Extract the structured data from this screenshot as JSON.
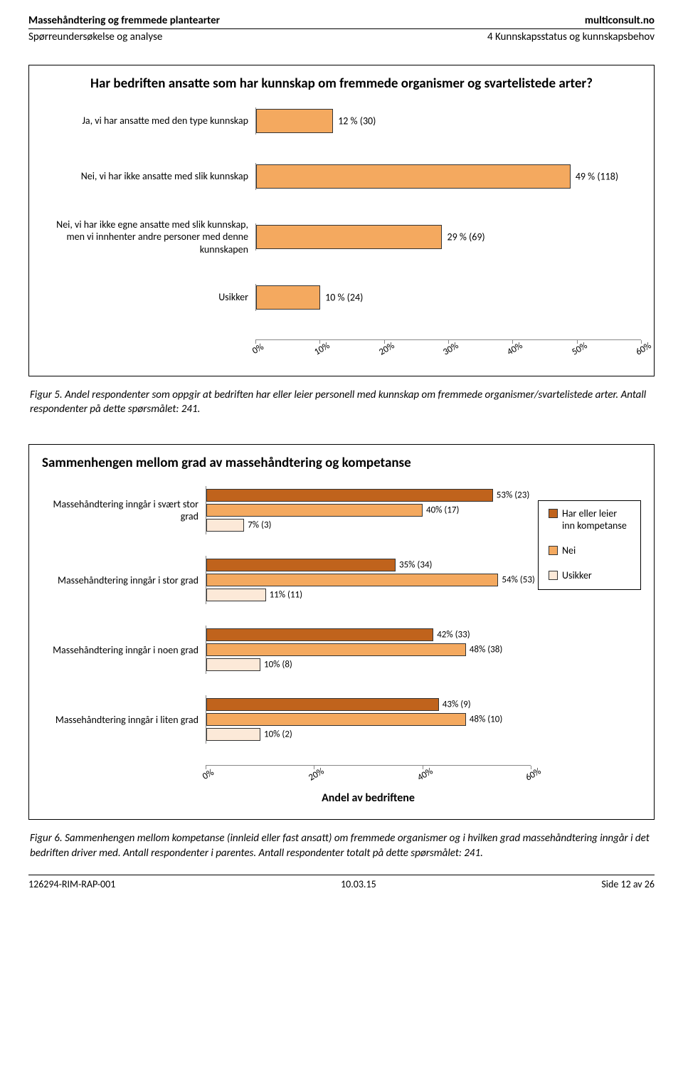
{
  "header": {
    "left_bold": "Massehåndtering og fremmede plantearter",
    "right_bold": "multiconsult.no",
    "left_sub": "Spørreundersøkelse og analyse",
    "right_sub": "4 Kunnskapsstatus og kunnskapsbehov"
  },
  "chart1": {
    "type": "bar-horizontal",
    "title": "Har bedriften ansatte som har kunnskap om fremmede organismer og svartelistede arter?",
    "bar_color": "#f4a95f",
    "bar_border": "#333333",
    "xmax": 60,
    "xtick_step": 10,
    "xticks": [
      "0%",
      "10%",
      "20%",
      "30%",
      "40%",
      "50%",
      "60%"
    ],
    "categories": [
      {
        "label": "Ja, vi har ansatte med den type kunnskap",
        "value": 12,
        "text": "12 % (30)"
      },
      {
        "label": "Nei, vi har ikke ansatte med slik kunnskap",
        "value": 49,
        "text": "49 % (118)"
      },
      {
        "label": "Nei, vi har ikke egne ansatte med slik kunnskap, men vi innhenter andre personer med denne kunnskapen",
        "value": 29,
        "text": "29 % (69)"
      },
      {
        "label": "Usikker",
        "value": 10,
        "text": "10 % (24)"
      }
    ]
  },
  "caption1": "Figur 5. Andel respondenter som oppgir at bedriften har eller leier personell med kunnskap om fremmede organismer/svartelistede arter. Antall respondenter på dette spørsmålet: 241.",
  "chart2": {
    "type": "bar-horizontal-grouped",
    "title": "Sammenhengen mellom grad av massehåndtering og kompetanse",
    "xmax": 60,
    "xtick_step": 20,
    "xticks": [
      "0%",
      "20%",
      "40%",
      "60%"
    ],
    "xlabel": "Andel av bedriftene",
    "series_colors": {
      "har": "#c0631c",
      "nei": "#f4a95f",
      "usikker": "#fce9d8"
    },
    "legend": [
      {
        "key": "har",
        "label": "Har eller leier inn kompetanse",
        "color": "#c0631c"
      },
      {
        "key": "nei",
        "label": "Nei",
        "color": "#f4a95f"
      },
      {
        "key": "usikker",
        "label": "Usikker",
        "color": "#fce9d8"
      }
    ],
    "groups": [
      {
        "label": "Massehåndtering inngår i svært stor grad",
        "bars": [
          {
            "series": "har",
            "value": 53,
            "text": "53% (23)"
          },
          {
            "series": "nei",
            "value": 40,
            "text": "40% (17)"
          },
          {
            "series": "usikker",
            "value": 7,
            "text": "7% (3)"
          }
        ]
      },
      {
        "label": "Massehåndtering inngår i stor grad",
        "bars": [
          {
            "series": "har",
            "value": 35,
            "text": "35% (34)"
          },
          {
            "series": "nei",
            "value": 54,
            "text": "54% (53)"
          },
          {
            "series": "usikker",
            "value": 11,
            "text": "11% (11)"
          }
        ]
      },
      {
        "label": "Massehåndtering inngår i noen grad",
        "bars": [
          {
            "series": "har",
            "value": 42,
            "text": "42% (33)"
          },
          {
            "series": "nei",
            "value": 48,
            "text": "48% (38)"
          },
          {
            "series": "usikker",
            "value": 10,
            "text": "10% (8)"
          }
        ]
      },
      {
        "label": "Massehåndtering inngår i liten grad",
        "bars": [
          {
            "series": "har",
            "value": 43,
            "text": "43% (9)"
          },
          {
            "series": "nei",
            "value": 48,
            "text": "48% (10)"
          },
          {
            "series": "usikker",
            "value": 10,
            "text": "10% (2)"
          }
        ]
      }
    ]
  },
  "caption2": "Figur 6. Sammenhengen mellom kompetanse (innleid eller fast ansatt) om fremmede organismer og i hvilken grad massehåndtering inngår i det bedriften driver med. Antall respondenter i parentes. Antall respondenter totalt på dette spørsmålet: 241.",
  "footer": {
    "left": "126294-RIM-RAP-001",
    "center": "10.03.15",
    "right": "Side 12 av 26"
  }
}
